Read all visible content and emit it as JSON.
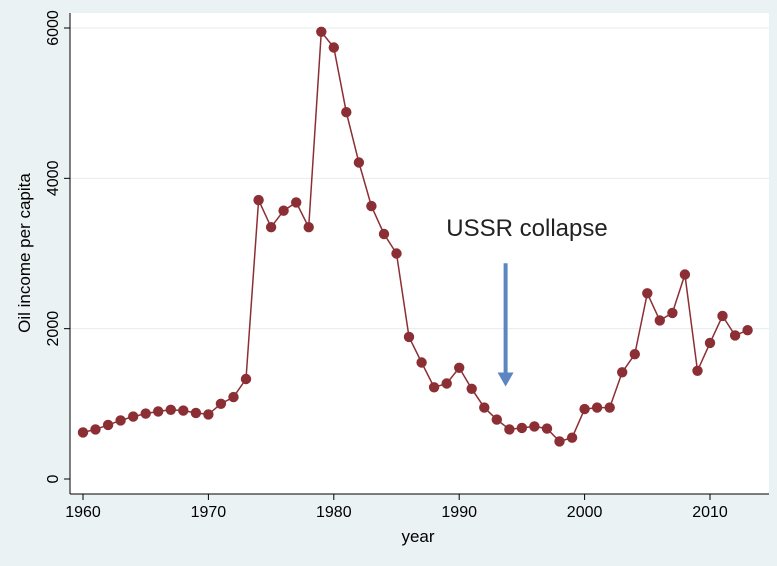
{
  "chart_data": {
    "type": "line",
    "xlabel": "year",
    "ylabel": "Oil income per capita",
    "xlim": [
      1959.5,
      2014
    ],
    "ylim": [
      -50,
      6000
    ],
    "x_ticks": [
      1960,
      1970,
      1980,
      1990,
      2000,
      2010
    ],
    "y_ticks": [
      0,
      2000,
      4000,
      6000
    ],
    "grid": "horizontal",
    "colors": {
      "line": "#8b2f35",
      "arrow": "#5b86c2",
      "grid": "#e6ecee",
      "background": "#ffffff"
    },
    "annotation": {
      "text": "USSR collapse",
      "arrow_x": 1993.7,
      "arrow_from_y": 2870,
      "arrow_to_y": 1230
    },
    "series": [
      {
        "x": [
          1960,
          1961,
          1962,
          1963,
          1964,
          1965,
          1966,
          1967,
          1968,
          1969,
          1970,
          1971,
          1972,
          1973,
          1974,
          1975,
          1976,
          1977,
          1978,
          1979,
          1980,
          1981,
          1982,
          1983,
          1984,
          1985,
          1986,
          1987,
          1988,
          1989,
          1990,
          1991,
          1992,
          1993,
          1994,
          1995,
          1996,
          1997,
          1998,
          1999,
          2000,
          2001,
          2002,
          2003,
          2004,
          2005,
          2006,
          2007,
          2008,
          2009,
          2010,
          2011,
          2012,
          2013
        ],
        "y": [
          620,
          660,
          720,
          780,
          830,
          870,
          900,
          920,
          910,
          880,
          860,
          1000,
          1090,
          1330,
          3710,
          3350,
          3570,
          3680,
          3350,
          5950,
          5740,
          4880,
          4210,
          3630,
          3260,
          3000,
          1890,
          1550,
          1220,
          1270,
          1480,
          1200,
          950,
          790,
          660,
          680,
          700,
          670,
          500,
          550,
          930,
          950,
          950,
          1420,
          1660,
          2470,
          2110,
          2210,
          2720,
          1440,
          1810,
          2170,
          1910,
          1980
        ]
      }
    ]
  }
}
